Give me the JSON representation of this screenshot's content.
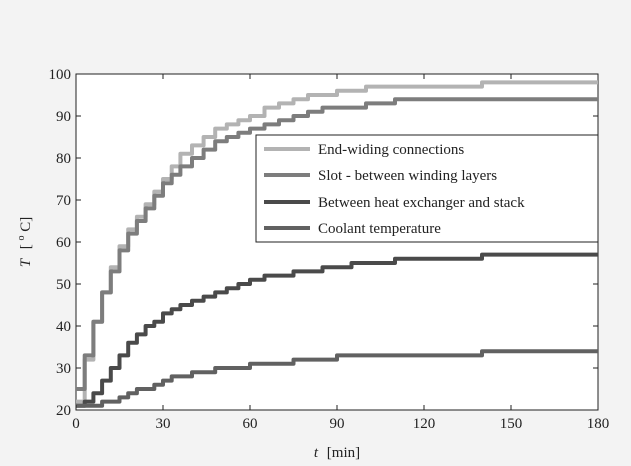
{
  "chart_data": {
    "type": "line",
    "title": "",
    "xlabel": {
      "symbol": "t",
      "unit": "[min]"
    },
    "ylabel": {
      "symbol": "T",
      "unit_open": "[",
      "unit_sup": "o",
      "unit_main": "C]"
    },
    "xlim": [
      0,
      180
    ],
    "ylim": [
      20,
      100
    ],
    "xticks": [
      0,
      30,
      60,
      90,
      120,
      150,
      180
    ],
    "yticks": [
      20,
      30,
      40,
      50,
      60,
      70,
      80,
      90,
      100
    ],
    "grid": false,
    "legend_position": "top-right",
    "series": [
      {
        "name": "End-widing connections",
        "color": "#b3b3b3",
        "x": [
          0,
          3,
          6,
          9,
          12,
          15,
          18,
          21,
          24,
          27,
          30,
          33,
          36,
          40,
          44,
          48,
          52,
          56,
          60,
          65,
          70,
          75,
          80,
          85,
          90,
          95,
          100,
          105,
          110,
          120,
          130,
          140,
          150,
          160,
          170,
          180
        ],
        "y": [
          22,
          32,
          41,
          48,
          54,
          59,
          63,
          66,
          69,
          72,
          75,
          78,
          81,
          83,
          85,
          87,
          88,
          89,
          90,
          92,
          93,
          94,
          95,
          95,
          96,
          96,
          97,
          97,
          97,
          97,
          97,
          98,
          98,
          98,
          98,
          98
        ]
      },
      {
        "name": "Slot - between winding layers",
        "color": "#7d7d7d",
        "x": [
          0,
          3,
          6,
          9,
          12,
          15,
          18,
          21,
          24,
          27,
          30,
          33,
          36,
          40,
          44,
          48,
          52,
          56,
          60,
          65,
          70,
          75,
          80,
          85,
          90,
          95,
          100,
          105,
          110,
          120,
          130,
          140,
          150,
          160,
          170,
          180
        ],
        "y": [
          25,
          33,
          41,
          48,
          53,
          58,
          62,
          65,
          68,
          71,
          74,
          76,
          78,
          80,
          82,
          84,
          85,
          86,
          87,
          88,
          89,
          90,
          91,
          92,
          92,
          92,
          93,
          93,
          94,
          94,
          94,
          94,
          94,
          94,
          94,
          94
        ]
      },
      {
        "name": "Between heat exchanger and stack",
        "color": "#4a4a4a",
        "x": [
          0,
          3,
          6,
          9,
          12,
          15,
          18,
          21,
          24,
          27,
          30,
          33,
          36,
          40,
          44,
          48,
          52,
          56,
          60,
          65,
          70,
          75,
          80,
          85,
          90,
          95,
          100,
          105,
          110,
          120,
          130,
          140,
          150,
          160,
          170,
          180
        ],
        "y": [
          21,
          22,
          24,
          27,
          30,
          33,
          36,
          38,
          40,
          41,
          43,
          44,
          45,
          46,
          47,
          48,
          49,
          50,
          51,
          52,
          52,
          53,
          53,
          54,
          54,
          55,
          55,
          55,
          56,
          56,
          56,
          57,
          57,
          57,
          57,
          57
        ]
      },
      {
        "name": "Coolant temperature",
        "color": "#616161",
        "x": [
          0,
          3,
          6,
          9,
          12,
          15,
          18,
          21,
          24,
          27,
          30,
          33,
          36,
          40,
          44,
          48,
          52,
          56,
          60,
          65,
          70,
          75,
          80,
          85,
          90,
          95,
          100,
          105,
          110,
          120,
          130,
          140,
          150,
          160,
          170,
          180
        ],
        "y": [
          21,
          21,
          21,
          22,
          22,
          23,
          24,
          25,
          25,
          26,
          27,
          28,
          28,
          29,
          29,
          30,
          30,
          30,
          31,
          31,
          31,
          32,
          32,
          32,
          33,
          33,
          33,
          33,
          33,
          33,
          33,
          34,
          34,
          34,
          34,
          34
        ]
      }
    ]
  }
}
